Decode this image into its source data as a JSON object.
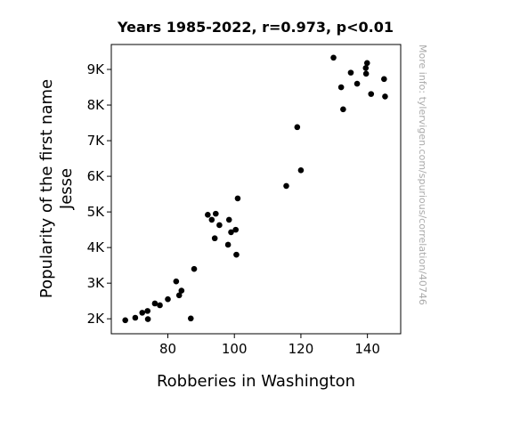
{
  "chart_data": {
    "type": "scatter",
    "title": "Years 1985-2022, r=0.973, p<0.01",
    "xlabel": "Robberies in Washington",
    "ylabel_lines": [
      "Popularity of the first name",
      "Jesse"
    ],
    "xlim": [
      63,
      150
    ],
    "ylim": [
      1580,
      9700
    ],
    "x_ticks": [
      {
        "value": 80,
        "label": "80"
      },
      {
        "value": 100,
        "label": "100"
      },
      {
        "value": 120,
        "label": "120"
      },
      {
        "value": 140,
        "label": "140"
      }
    ],
    "y_ticks": [
      {
        "value": 2000,
        "label": "2K"
      },
      {
        "value": 3000,
        "label": "3K"
      },
      {
        "value": 4000,
        "label": "4K"
      },
      {
        "value": 5000,
        "label": "5K"
      },
      {
        "value": 6000,
        "label": "6K"
      },
      {
        "value": 7000,
        "label": "7K"
      },
      {
        "value": 8000,
        "label": "8K"
      },
      {
        "value": 9000,
        "label": "9K"
      }
    ],
    "marker_color": "#000000",
    "grid": false,
    "points": [
      {
        "x": 67.2,
        "y": 1960
      },
      {
        "x": 70.2,
        "y": 2030
      },
      {
        "x": 72.3,
        "y": 2170
      },
      {
        "x": 73.9,
        "y": 2220
      },
      {
        "x": 74.0,
        "y": 1990
      },
      {
        "x": 76.1,
        "y": 2430
      },
      {
        "x": 77.6,
        "y": 2380
      },
      {
        "x": 80.0,
        "y": 2550
      },
      {
        "x": 82.5,
        "y": 3050
      },
      {
        "x": 83.4,
        "y": 2660
      },
      {
        "x": 84.1,
        "y": 2790
      },
      {
        "x": 86.9,
        "y": 2010
      },
      {
        "x": 87.9,
        "y": 3400
      },
      {
        "x": 92.0,
        "y": 4920
      },
      {
        "x": 93.2,
        "y": 4780
      },
      {
        "x": 94.1,
        "y": 4260
      },
      {
        "x": 94.4,
        "y": 4950
      },
      {
        "x": 95.5,
        "y": 4630
      },
      {
        "x": 98.1,
        "y": 4080
      },
      {
        "x": 98.4,
        "y": 4780
      },
      {
        "x": 99.0,
        "y": 4430
      },
      {
        "x": 100.4,
        "y": 4500
      },
      {
        "x": 100.6,
        "y": 3800
      },
      {
        "x": 101.0,
        "y": 5380
      },
      {
        "x": 115.6,
        "y": 5730
      },
      {
        "x": 118.9,
        "y": 7380
      },
      {
        "x": 120.0,
        "y": 6170
      },
      {
        "x": 129.8,
        "y": 9330
      },
      {
        "x": 132.1,
        "y": 8500
      },
      {
        "x": 132.7,
        "y": 7880
      },
      {
        "x": 135.0,
        "y": 8910
      },
      {
        "x": 136.9,
        "y": 8600
      },
      {
        "x": 139.5,
        "y": 9040
      },
      {
        "x": 139.6,
        "y": 8880
      },
      {
        "x": 139.9,
        "y": 9180
      },
      {
        "x": 141.1,
        "y": 8310
      },
      {
        "x": 145.0,
        "y": 8730
      },
      {
        "x": 145.3,
        "y": 8240
      }
    ]
  },
  "watermark": "More info: tylervigen.com/spurious/correlation/40746"
}
